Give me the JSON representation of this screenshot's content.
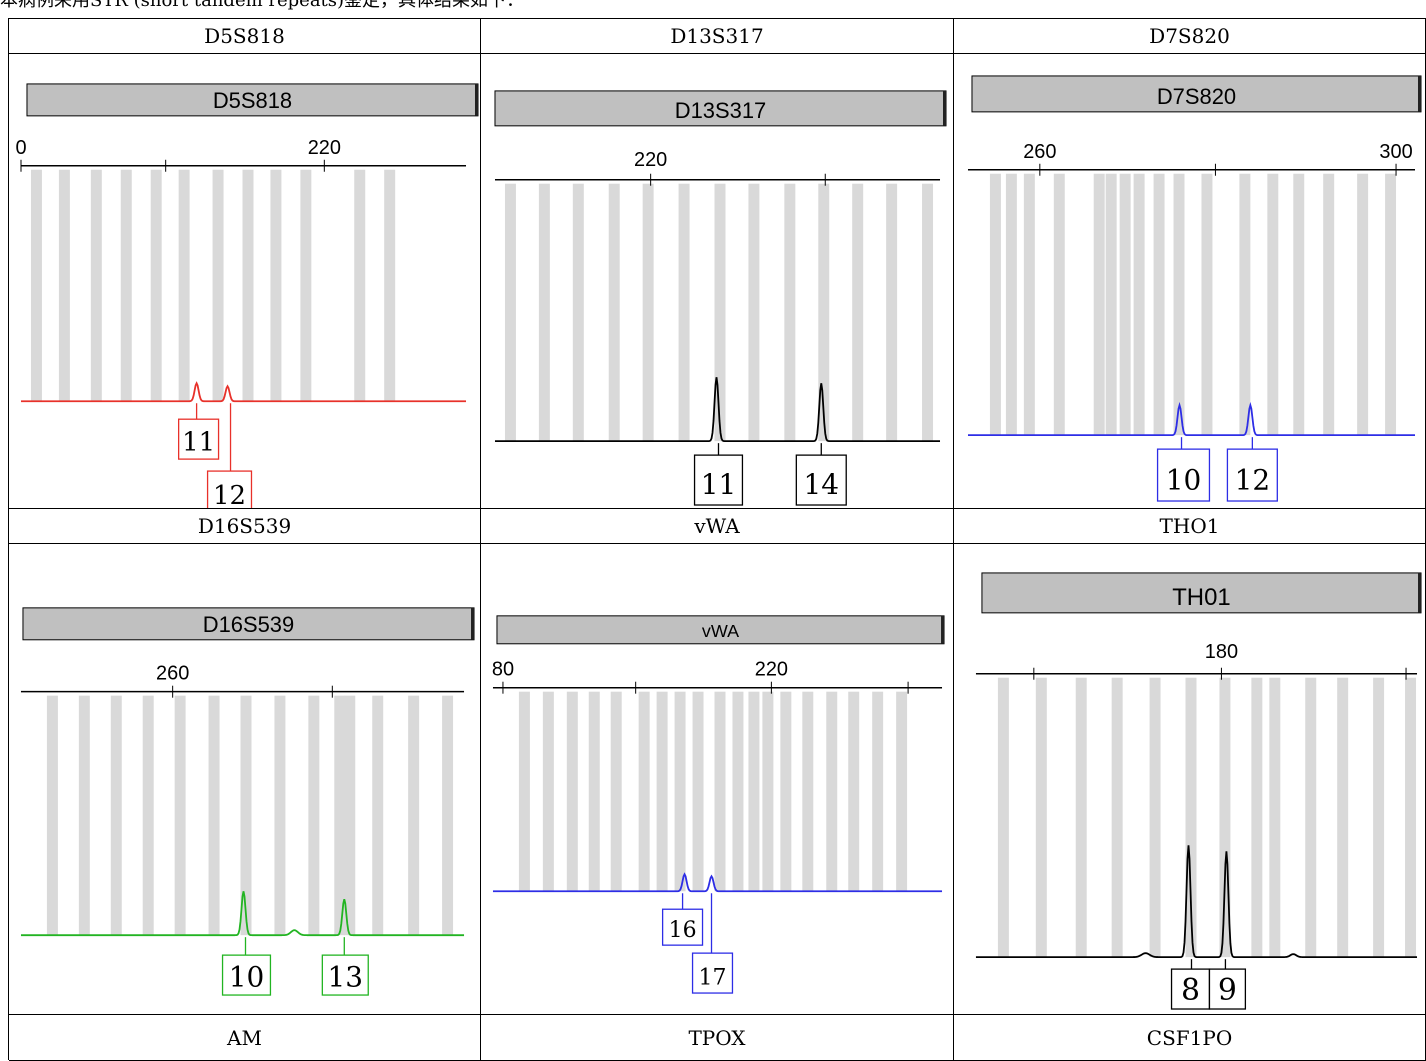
{
  "caption": "本病例采用STR (short tandem repeats)鉴定，具体结果如下：",
  "headers": [
    "D5S818",
    "D13S317",
    "D7S820",
    "D16S539",
    "vWA",
    "THO1",
    "AM",
    "TPOX",
    "CSF1PO"
  ],
  "colors": {
    "red": "#e8312a",
    "black": "#000000",
    "blue": "#2d2de6",
    "green": "#22b422",
    "bin": "#d9d9d9",
    "titlebar": "#c0c0c0"
  },
  "panels": [
    {
      "id": "p1",
      "title": "D5S818",
      "ticks": [
        "0",
        "220"
      ],
      "color": "red",
      "alleles": [
        "11",
        "12"
      ]
    },
    {
      "id": "p2",
      "title": "D13S317",
      "ticks": [
        "220"
      ],
      "color": "black",
      "alleles": [
        "11",
        "14"
      ]
    },
    {
      "id": "p3",
      "title": "D7S820",
      "ticks": [
        "260",
        "300"
      ],
      "color": "blue",
      "alleles": [
        "10",
        "12"
      ]
    },
    {
      "id": "p4",
      "title": "D16S539",
      "ticks": [
        "260"
      ],
      "color": "green",
      "alleles": [
        "10",
        "13"
      ]
    },
    {
      "id": "p5",
      "title": "vWA",
      "ticks": [
        "80",
        "220"
      ],
      "color": "blue",
      "alleles": [
        "16",
        "17"
      ]
    },
    {
      "id": "p6",
      "title": "TH01",
      "ticks": [
        "180"
      ],
      "color": "black",
      "alleles": [
        "8",
        "9"
      ]
    }
  ]
}
